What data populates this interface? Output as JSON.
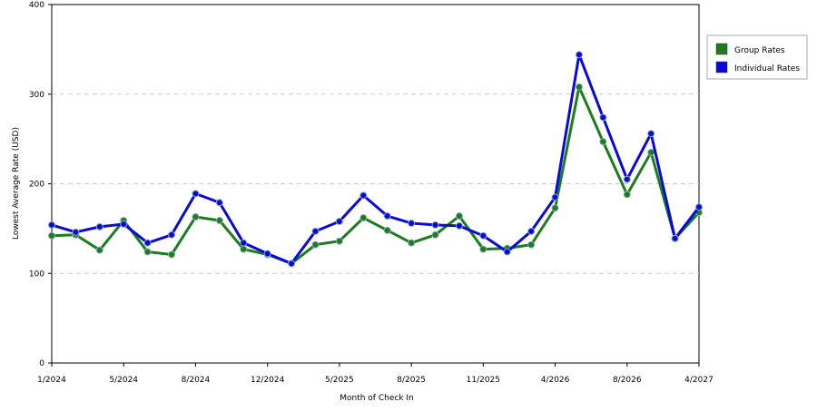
{
  "chart_data": {
    "type": "line",
    "x_label": "Month of Check In",
    "y_label": "Lowest Average Rate (USD)",
    "categories": [
      "1/2024",
      null,
      null,
      "5/2024",
      null,
      null,
      "8/2024",
      null,
      null,
      "12/2024",
      null,
      null,
      "5/2025",
      null,
      null,
      "8/2025",
      null,
      null,
      "11/2025",
      null,
      null,
      "4/2026",
      null,
      null,
      "8/2026",
      null,
      null,
      "4/2027"
    ],
    "series": [
      {
        "name": "Group Rates",
        "color": "#1c7d1c",
        "values": [
          142,
          143,
          126,
          159,
          124,
          121,
          163,
          159,
          127,
          121,
          111,
          132,
          136,
          162,
          148,
          134,
          143,
          164,
          127,
          128,
          132,
          173,
          308,
          247,
          188,
          235,
          139,
          168
        ]
      },
      {
        "name": "Individual Rates",
        "color": "#0a0ad8",
        "values": [
          154,
          146,
          152,
          155,
          134,
          143,
          189,
          179,
          134,
          122,
          111,
          147,
          158,
          187,
          164,
          156,
          154,
          153,
          142,
          124,
          147,
          185,
          344,
          274,
          205,
          256,
          139,
          174
        ]
      }
    ],
    "ylim": [
      0,
      400
    ],
    "yticks": [
      0,
      100,
      200,
      300,
      400
    ],
    "grid": true
  }
}
